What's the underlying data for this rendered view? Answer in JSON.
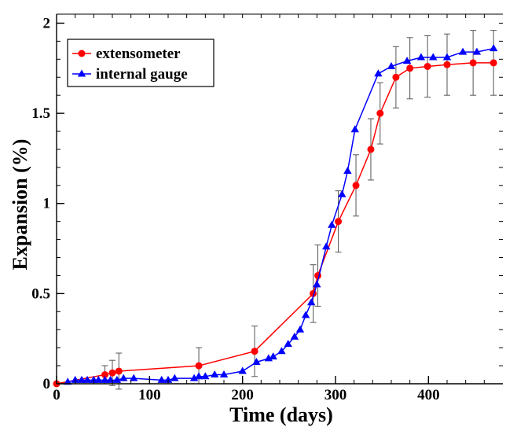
{
  "chart_data": {
    "type": "line",
    "title": "",
    "xlabel": "Time (days)",
    "ylabel": "Expansion (%)",
    "xlim": [
      0,
      480
    ],
    "ylim": [
      0,
      2.05
    ],
    "xticks": [
      0,
      100,
      200,
      300,
      400
    ],
    "xtick_labels": [
      "0",
      "100",
      "200",
      "300",
      "400"
    ],
    "yticks": [
      0,
      0.5,
      1,
      1.5,
      2
    ],
    "ytick_labels": [
      "0",
      "0.5",
      "1",
      "1.5",
      "2"
    ],
    "grid": false,
    "legend_position": "top-left",
    "series": [
      {
        "name": "extensometer",
        "color": "#ff0000",
        "marker": "circle",
        "x": [
          0,
          52,
          60,
          67,
          153,
          213,
          276,
          281,
          303,
          322,
          338,
          348,
          365,
          380,
          399,
          420,
          448,
          470
        ],
        "y": [
          0.0,
          0.05,
          0.06,
          0.07,
          0.1,
          0.18,
          0.5,
          0.6,
          0.9,
          1.1,
          1.3,
          1.5,
          1.7,
          1.75,
          1.76,
          1.77,
          1.78,
          1.78
        ],
        "error": [
          0,
          0.05,
          0.07,
          0.1,
          0.1,
          0.14,
          0.16,
          0.17,
          0.17,
          0.17,
          0.17,
          0.17,
          0.17,
          0.17,
          0.17,
          0.17,
          0.18,
          0.18
        ]
      },
      {
        "name": "internal gauge",
        "color": "#0000ff",
        "marker": "triangle",
        "x": [
          12,
          20,
          27,
          33,
          40,
          45,
          52,
          58,
          65,
          72,
          83,
          113,
          120,
          127,
          148,
          153,
          160,
          170,
          180,
          200,
          215,
          228,
          233,
          242,
          249,
          256,
          262,
          268,
          274,
          280,
          290,
          296,
          307,
          313,
          321,
          346,
          360,
          377,
          392,
          405,
          420,
          437,
          452,
          470
        ],
        "y": [
          0.01,
          0.02,
          0.02,
          0.02,
          0.02,
          0.02,
          0.02,
          0.02,
          0.02,
          0.03,
          0.03,
          0.02,
          0.02,
          0.03,
          0.03,
          0.04,
          0.04,
          0.05,
          0.05,
          0.07,
          0.12,
          0.14,
          0.15,
          0.18,
          0.22,
          0.26,
          0.3,
          0.38,
          0.45,
          0.55,
          0.76,
          0.88,
          1.05,
          1.18,
          1.41,
          1.72,
          1.76,
          1.79,
          1.81,
          1.81,
          1.81,
          1.84,
          1.84,
          1.86
        ]
      }
    ]
  }
}
